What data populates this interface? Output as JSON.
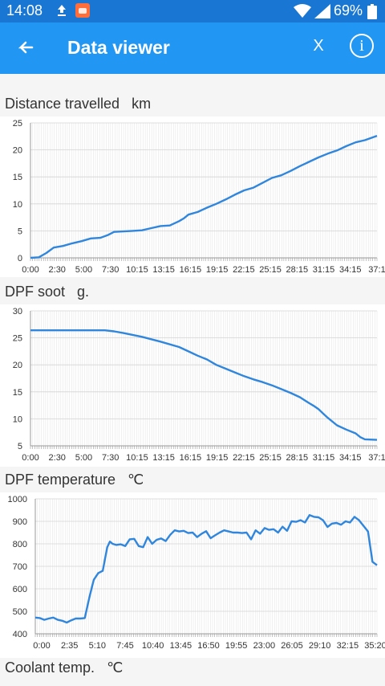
{
  "status_bar": {
    "time": "14:08",
    "battery": "69%",
    "icons": [
      "upload-icon",
      "app-notification-icon",
      "wifi-icon",
      "signal-icon",
      "battery-icon"
    ]
  },
  "app_bar": {
    "title": "Data viewer",
    "close_label": "X",
    "info_label": "i",
    "icons": [
      "back-arrow-icon",
      "info-icon"
    ]
  },
  "colors": {
    "primary": "#2196f3",
    "status_bar": "#1976d2",
    "line": "#2f86dc"
  },
  "sections": [
    {
      "title": "Distance travelled   km"
    },
    {
      "title": "DPF soot   g."
    },
    {
      "title": "DPF temperature   ℃"
    },
    {
      "title": "Coolant temp.   ℃"
    }
  ],
  "chart_data": [
    {
      "type": "line",
      "title": "Distance travelled   km",
      "x_tick_labels": [
        "0:00",
        "2:30",
        "5:00",
        "7:30",
        "10:15",
        "13:15",
        "16:15",
        "19:15",
        "22:15",
        "25:15",
        "28:15",
        "31:15",
        "34:15",
        "37:1"
      ],
      "y_ticks": [
        0,
        5,
        10,
        15,
        20,
        25
      ],
      "ylim": [
        0,
        25
      ],
      "xlim": [
        0,
        37.3
      ],
      "grid": true,
      "series": [
        {
          "x": [
            0,
            0.9,
            1.7,
            2.5,
            3.5,
            4.5,
            5.5,
            6.5,
            7.5,
            8.3,
            9.0,
            10.0,
            11.0,
            12.0,
            13.0,
            14.0,
            15.0,
            16.0,
            16.5,
            17.0,
            18.0,
            19.0,
            20.0,
            21.0,
            22.0,
            23.0,
            24.0,
            25.0,
            26.0,
            27.0,
            28.0,
            29.0,
            30.0,
            31.0,
            32.0,
            33.0,
            34.0,
            35.0,
            36.0,
            37.3
          ],
          "y": [
            0,
            0.1,
            0.9,
            1.9,
            2.2,
            2.7,
            3.1,
            3.6,
            3.7,
            4.2,
            4.8,
            4.9,
            5.0,
            5.1,
            5.5,
            5.9,
            6.0,
            6.8,
            7.3,
            8.0,
            8.5,
            9.3,
            10.0,
            10.8,
            11.7,
            12.5,
            13.0,
            13.9,
            14.8,
            15.3,
            16.1,
            17.0,
            17.8,
            18.6,
            19.3,
            19.9,
            20.7,
            21.4,
            21.8,
            22.6
          ]
        }
      ]
    },
    {
      "type": "line",
      "title": "DPF soot   g.",
      "x_tick_labels": [
        "0:00",
        "2:30",
        "5:00",
        "7:30",
        "10:15",
        "13:15",
        "16:15",
        "19:15",
        "22:15",
        "25:15",
        "28:15",
        "31:15",
        "34:15",
        "37:1"
      ],
      "y_ticks": [
        5,
        10,
        15,
        20,
        25,
        30
      ],
      "ylim": [
        5,
        30
      ],
      "xlim": [
        0,
        37.3
      ],
      "grid": true,
      "series": [
        {
          "x": [
            0,
            2,
            4,
            6,
            8,
            9,
            10,
            12,
            14,
            16,
            17,
            18,
            19,
            20,
            21,
            22,
            23,
            24,
            25,
            26,
            27,
            28,
            29,
            30,
            30.5,
            31,
            31.5,
            32,
            33,
            34,
            35,
            35.5,
            36,
            37.3
          ],
          "y": [
            26.4,
            26.4,
            26.4,
            26.4,
            26.4,
            26.2,
            25.9,
            25.2,
            24.3,
            23.3,
            22.5,
            21.7,
            21.0,
            20.0,
            19.3,
            18.6,
            17.9,
            17.3,
            16.8,
            16.2,
            15.5,
            14.8,
            14.0,
            12.9,
            12.4,
            11.8,
            11.0,
            10.2,
            8.8,
            8.0,
            7.3,
            6.6,
            6.2,
            6.1
          ]
        }
      ]
    },
    {
      "type": "line",
      "title": "DPF temperature   ℃",
      "x_tick_labels": [
        "0:00",
        "2:35",
        "5:10",
        "7:45",
        "10:40",
        "13:45",
        "16:50",
        "19:55",
        "23:00",
        "26:05",
        "29:10",
        "32:15",
        "35:20"
      ],
      "y_ticks": [
        400,
        500,
        600,
        700,
        800,
        900,
        1000
      ],
      "ylim": [
        400,
        1000
      ],
      "xlim": [
        0,
        38
      ],
      "grid": true,
      "series": [
        {
          "x": [
            0,
            0.5,
            1,
            1.5,
            2,
            2.5,
            3,
            3.5,
            4,
            4.5,
            5,
            5.5,
            6,
            6.5,
            7,
            7.5,
            8,
            8.3,
            8.6,
            9,
            9.5,
            10,
            10.5,
            11,
            11.5,
            12,
            12.5,
            13,
            13.5,
            14,
            14.5,
            15,
            15.5,
            16,
            16.5,
            17,
            17.5,
            18,
            18.5,
            19,
            19.5,
            20,
            20.5,
            21,
            21.5,
            22,
            22.5,
            23,
            23.5,
            24,
            24.5,
            25,
            25.5,
            26,
            26.5,
            27,
            27.5,
            28,
            28.5,
            29,
            29.5,
            30,
            30.5,
            31,
            31.5,
            32,
            32.5,
            33,
            33.5,
            34,
            34.5,
            35,
            35.5,
            36,
            36.5,
            37,
            37.5,
            38
          ],
          "y": [
            472,
            470,
            462,
            468,
            472,
            462,
            458,
            450,
            460,
            468,
            468,
            470,
            560,
            640,
            670,
            680,
            785,
            810,
            800,
            795,
            798,
            790,
            820,
            822,
            790,
            785,
            830,
            800,
            818,
            824,
            812,
            840,
            860,
            855,
            858,
            848,
            850,
            830,
            845,
            856,
            825,
            838,
            850,
            860,
            855,
            850,
            850,
            848,
            850,
            820,
            860,
            845,
            870,
            862,
            865,
            850,
            876,
            858,
            900,
            898,
            905,
            895,
            928,
            920,
            918,
            905,
            875,
            890,
            893,
            885,
            900,
            895,
            920,
            905,
            880,
            855,
            720,
            705
          ]
        }
      ]
    }
  ]
}
